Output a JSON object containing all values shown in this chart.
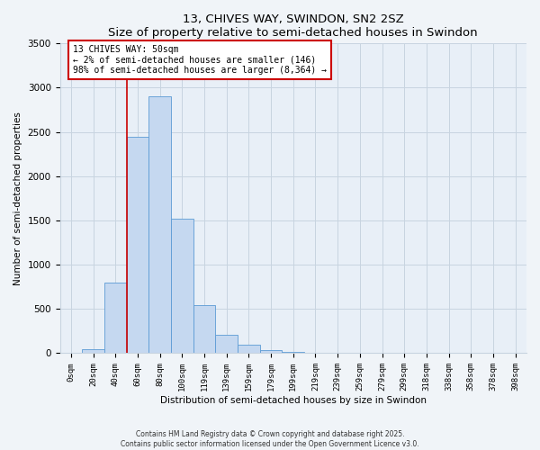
{
  "title": "13, CHIVES WAY, SWINDON, SN2 2SZ",
  "subtitle": "Size of property relative to semi-detached houses in Swindon",
  "xlabel": "Distribution of semi-detached houses by size in Swindon",
  "ylabel": "Number of semi-detached properties",
  "bar_labels": [
    "0sqm",
    "20sqm",
    "40sqm",
    "60sqm",
    "80sqm",
    "100sqm",
    "119sqm",
    "139sqm",
    "159sqm",
    "179sqm",
    "199sqm",
    "219sqm",
    "239sqm",
    "259sqm",
    "279sqm",
    "299sqm",
    "318sqm",
    "338sqm",
    "358sqm",
    "378sqm",
    "398sqm"
  ],
  "bar_values": [
    0,
    50,
    800,
    2450,
    2900,
    1520,
    540,
    210,
    100,
    40,
    10,
    5,
    2,
    1,
    0,
    0,
    0,
    0,
    0,
    0,
    0
  ],
  "bar_color": "#c5d8f0",
  "bar_edge_color": "#5b9bd5",
  "ylim": [
    0,
    3500
  ],
  "vline_color": "#cc0000",
  "vline_pos": 2.5,
  "annotation_title": "13 CHIVES WAY: 50sqm",
  "annotation_line1": "← 2% of semi-detached houses are smaller (146)",
  "annotation_line2": "98% of semi-detached houses are larger (8,364) →",
  "annotation_box_color": "#cc0000",
  "footer1": "Contains HM Land Registry data © Crown copyright and database right 2025.",
  "footer2": "Contains public sector information licensed under the Open Government Licence v3.0.",
  "background_color": "#f0f4f8",
  "plot_bg_color": "#e8eff7",
  "grid_color": "#c8d4e0"
}
